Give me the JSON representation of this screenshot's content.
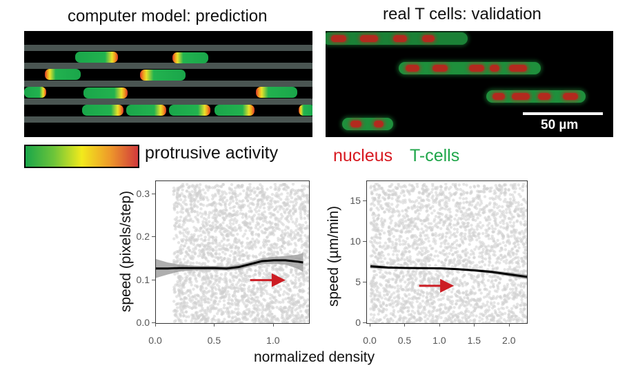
{
  "titles": {
    "left": "computer model: prediction",
    "right": "real T cells: validation"
  },
  "scale_bar": "50 µm",
  "colorbar_label": "protrusive activity",
  "legend": {
    "nucleus": "nucleus",
    "tcells": "T-cells"
  },
  "colors": {
    "nucleus": "#d71920",
    "tcells": "#1fa64a",
    "arrow": "#cc1d24",
    "points": "#cfcfcf",
    "line": "#000000",
    "band": "#9a9a9a"
  },
  "shared_xlabel": "normalized density",
  "chart_data": [
    {
      "type": "scatter",
      "ylabel": "speed (pixels/step)",
      "xlim": [
        0,
        1.3
      ],
      "ylim": [
        0,
        0.33
      ],
      "xticks": [
        "0.0",
        "0.5",
        "1.0"
      ],
      "yticks": [
        "0.0",
        "0.1",
        "0.2",
        "0.3"
      ],
      "xtick_values": [
        0,
        0.5,
        1.0
      ],
      "ytick_values": [
        0,
        0.1,
        0.2,
        0.3
      ],
      "points_x_range": [
        0.15,
        1.3
      ],
      "trend": {
        "x": [
          0.0,
          0.1,
          0.2,
          0.3,
          0.4,
          0.5,
          0.6,
          0.7,
          0.8,
          0.9,
          1.0,
          1.1,
          1.2,
          1.25
        ],
        "y": [
          0.127,
          0.127,
          0.128,
          0.128,
          0.128,
          0.128,
          0.127,
          0.13,
          0.137,
          0.144,
          0.146,
          0.146,
          0.143,
          0.141
        ],
        "band_width": [
          0.022,
          0.014,
          0.008,
          0.006,
          0.005,
          0.005,
          0.005,
          0.006,
          0.006,
          0.007,
          0.008,
          0.01,
          0.016,
          0.022
        ]
      },
      "arrow": {
        "x_from": 0.8,
        "x_to": 1.1,
        "y": 0.1
      }
    },
    {
      "type": "scatter",
      "ylabel": "speed (µm/min)",
      "xlim": [
        -0.05,
        2.25
      ],
      "ylim": [
        0,
        17.5
      ],
      "xticks": [
        "0.0",
        "0.5",
        "1.0",
        "1.5",
        "2.0"
      ],
      "yticks": [
        "0",
        "5",
        "10",
        "15"
      ],
      "xtick_values": [
        0,
        0.5,
        1.0,
        1.5,
        2.0
      ],
      "ytick_values": [
        0,
        5,
        10,
        15
      ],
      "points_x_range": [
        0.0,
        2.25
      ],
      "trend": {
        "x": [
          0.0,
          0.25,
          0.5,
          0.75,
          1.0,
          1.25,
          1.5,
          1.75,
          2.0,
          2.25
        ],
        "y": [
          7.0,
          6.85,
          6.8,
          6.78,
          6.75,
          6.65,
          6.5,
          6.3,
          6.0,
          5.7
        ],
        "band_width": [
          0.25,
          0.15,
          0.1,
          0.1,
          0.1,
          0.12,
          0.15,
          0.2,
          0.25,
          0.3
        ]
      },
      "arrow": {
        "x_from": 0.7,
        "x_to": 1.2,
        "y": 4.6
      }
    }
  ]
}
